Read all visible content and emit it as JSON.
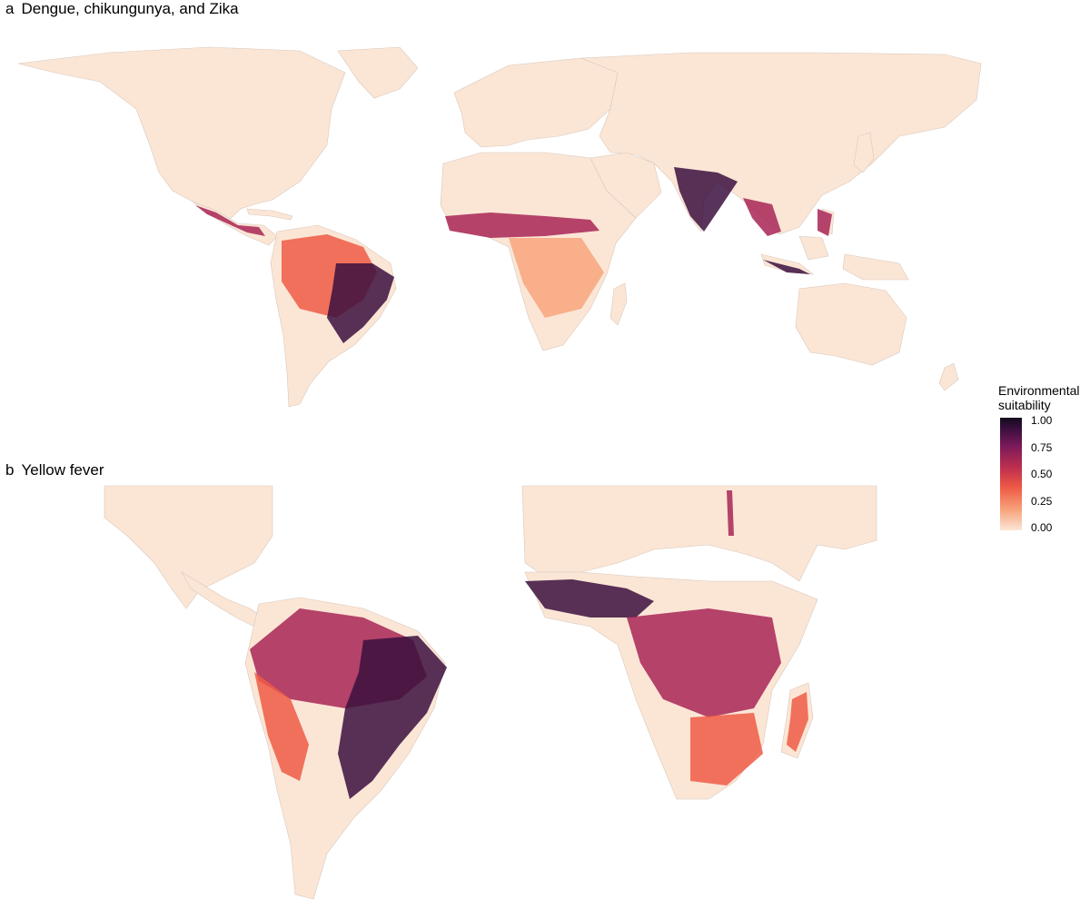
{
  "panels": [
    {
      "tag": "a",
      "title": "Dengue, chikungunya, and Zika"
    },
    {
      "tag": "b",
      "title": "Yellow fever"
    }
  ],
  "legend": {
    "title_line1": "Environmental",
    "title_line2": "suitability",
    "ticks": [
      "1.00",
      "0.75",
      "0.50",
      "0.25",
      "0.00"
    ],
    "scale_min": 0,
    "scale_max": 1
  },
  "colors": {
    "land": "#fbe6d6",
    "border": "#d9c8bc",
    "low": "#f7a47c",
    "mid": "#ee5a45",
    "high": "#a82456",
    "very_high": "#3b0f3e",
    "max": "#120c1e"
  }
}
